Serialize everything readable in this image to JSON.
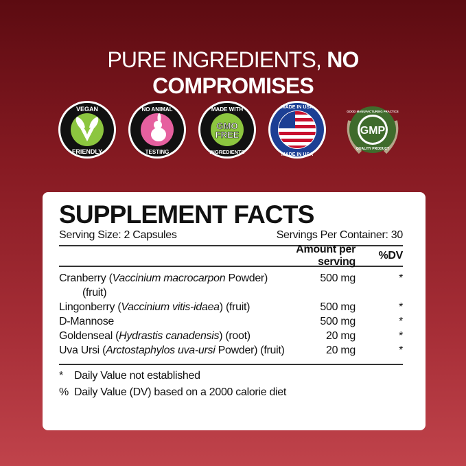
{
  "headline": {
    "light": "PURE INGREDIENTS, ",
    "bold": "NO COMPROMISES"
  },
  "badges": [
    {
      "icon": "vegan-leaf-icon",
      "top": "VEGAN",
      "bottom": "FRIENDLY",
      "color": "#8cc63f"
    },
    {
      "icon": "rabbit-icon",
      "top": "NO ANIMAL",
      "bottom": "TESTING",
      "color": "#e6609f"
    },
    {
      "icon": "gmo-free-icon",
      "top": "MADE WITH",
      "center1": "GMO",
      "center2": "FREE",
      "bottom": "INGREDIENTS",
      "color": "#8cc63f"
    },
    {
      "icon": "usa-flag-icon",
      "top": "MADE IN USA",
      "bottom": "MADE IN USA",
      "color": "#1c3f94"
    },
    {
      "icon": "gmp-seal-icon",
      "top": "GOOD MANUFACTURING PRACTICE",
      "center1": "GMP",
      "bottom": "QUALITY PRODUCT",
      "color": "#3f6b2c"
    }
  ],
  "facts": {
    "title": "SUPPLEMENT FACTS",
    "serving_size": "Serving Size: 2 Capsules",
    "servings_per_container": "Servings Per Container: 30",
    "col_amount": "Amount per serving",
    "col_dv": "%DV",
    "rows": [
      {
        "pre": "Cranberry (",
        "latin": "Vaccinium macrocarpon",
        "post": " Powder) (fruit)",
        "amount": "500 mg",
        "dv": "*"
      },
      {
        "pre": "Lingonberry (",
        "latin": "Vaccinium vitis-idaea",
        "post": ") (fruit)",
        "amount": "500 mg",
        "dv": "*"
      },
      {
        "pre": "D-Mannose",
        "latin": "",
        "post": "",
        "amount": "500 mg",
        "dv": "*"
      },
      {
        "pre": "Goldenseal (",
        "latin": "Hydrastis canadensis",
        "post": ") (root)",
        "amount": "20 mg",
        "dv": "*"
      },
      {
        "pre": "Uva Ursi (",
        "latin": "Arctostaphylos uva-ursi",
        "post": " Powder) (fruit)",
        "amount": "20 mg",
        "dv": "*"
      }
    ],
    "footnotes": [
      {
        "sym": "*",
        "text": "Daily Value not established"
      },
      {
        "sym": "%",
        "text": "Daily Value (DV) based on a 2000 calorie diet"
      }
    ]
  }
}
